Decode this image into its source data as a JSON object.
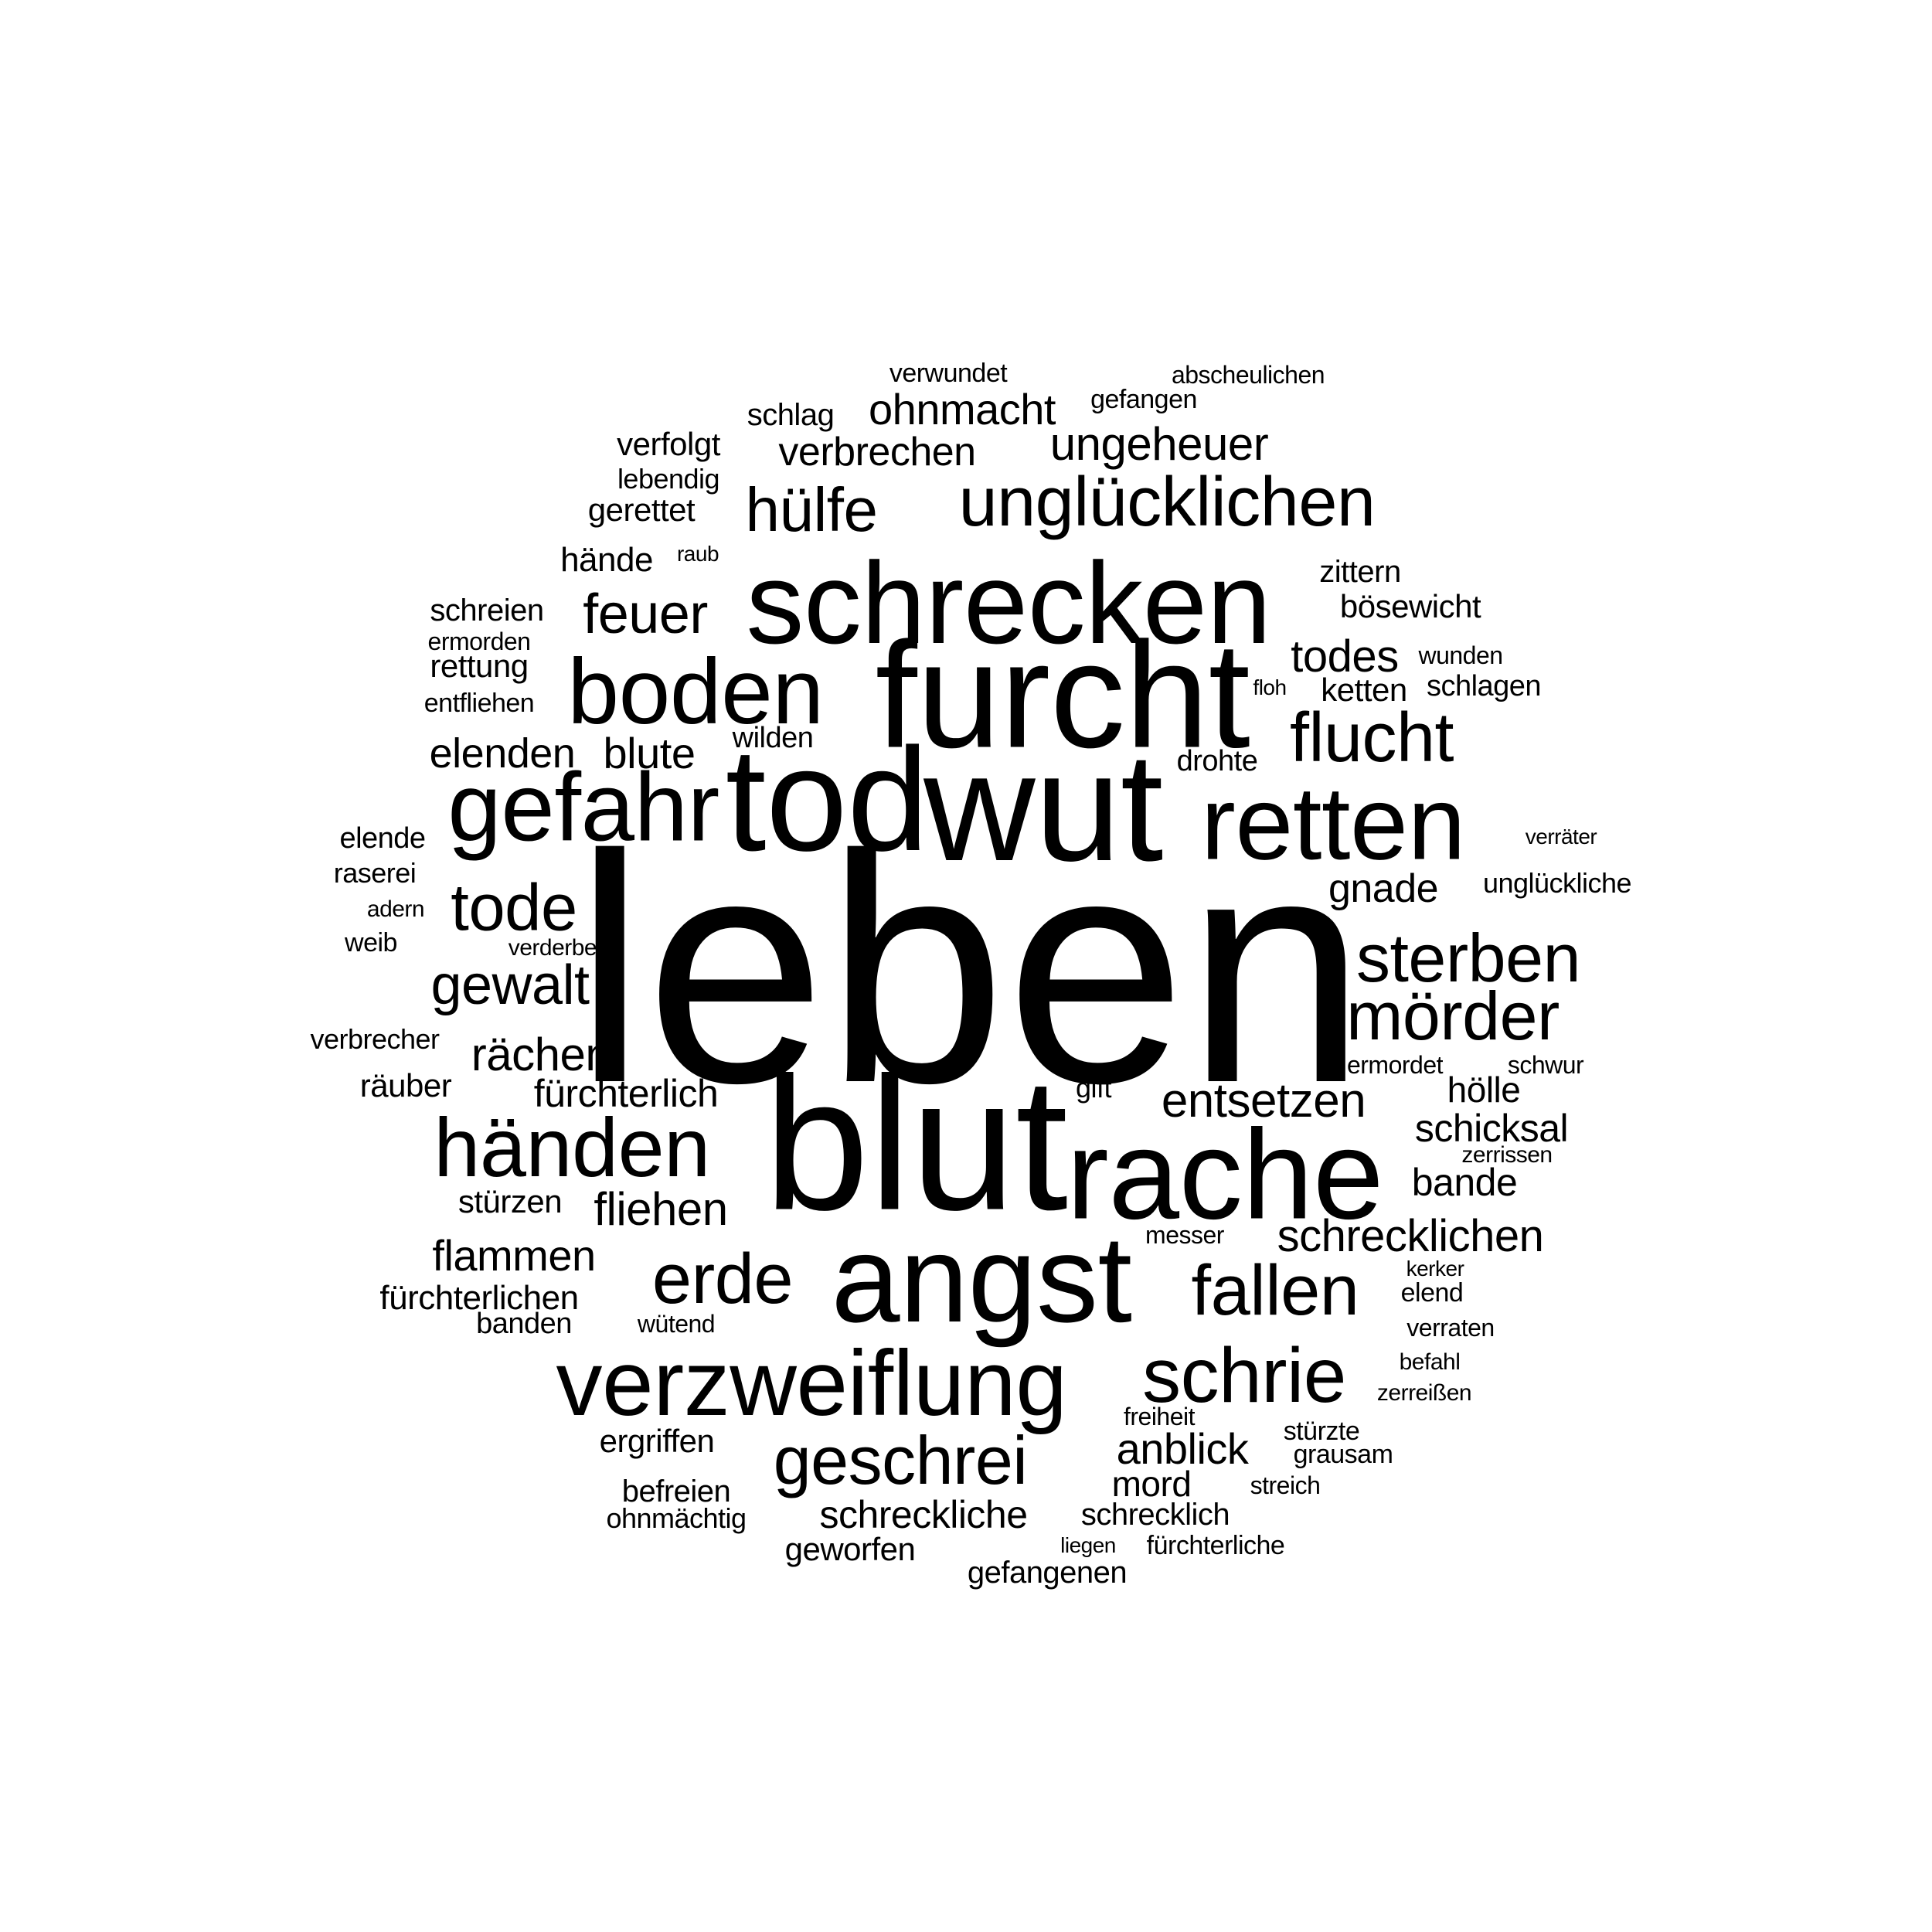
{
  "word_color": "#000000",
  "background_color": "#ffffff",
  "words": [
    "leben",
    "blut",
    "furcht",
    "wut",
    "tod",
    "schrecken",
    "rache",
    "angst",
    "retten",
    "gefahr",
    "boden",
    "verzweiflung",
    "schrie",
    "händen",
    "unglücklichen",
    "flucht",
    "geschrei",
    "erde",
    "fallen",
    "mörder",
    "sterben",
    "tode",
    "hülfe",
    "feuer",
    "gewalt",
    "entsetzen",
    "ungeheuer",
    "ohnmacht",
    "verbrechen",
    "schrecklichen",
    "fliehen",
    "rächen",
    "flammen",
    "anblick",
    "schicksal",
    "todes",
    "blute",
    "elenden",
    "gnade",
    "fürchterlich",
    "schreckliche",
    "bande",
    "hölle",
    "fürchterlichen",
    "mord",
    "schrecklich",
    "gefangenen",
    "geworfen",
    "ergriffen",
    "befreien",
    "ohnmächtig",
    "stürzen",
    "räuber",
    "verbrecher",
    "gerettet",
    "verfolgt",
    "lebendig",
    "hände",
    "raub",
    "schreien",
    "ermorden",
    "rettung",
    "entfliehen",
    "wilden",
    "elende",
    "raserei",
    "adern",
    "weib",
    "verderben",
    "zittern",
    "bösewicht",
    "wunden",
    "floh",
    "ketten",
    "schlagen",
    "drohte",
    "verräter",
    "unglückliche",
    "ermordet",
    "schwur",
    "gift",
    "zerrissen",
    "messer",
    "kerker",
    "elend",
    "verraten",
    "befahl",
    "zerreißen",
    "freiheit",
    "stürzte",
    "grausam",
    "streich",
    "liegen",
    "fürchterliche",
    "banden",
    "wütend",
    "schlag",
    "verwundet",
    "abscheulichen",
    "gefangen"
  ]
}
